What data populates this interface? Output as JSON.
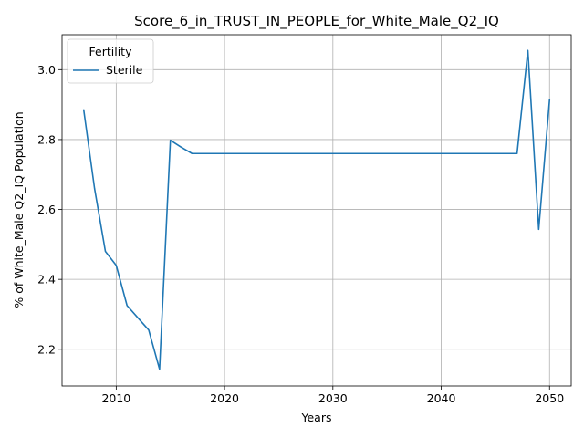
{
  "chart_data": {
    "type": "line",
    "title": "Score_6_in_TRUST_IN_PEOPLE_for_White_Male_Q2_IQ",
    "xlabel": "Years",
    "ylabel": "% of White_Male Q2_IQ Population",
    "xlim": [
      2005,
      2052
    ],
    "ylim": [
      2.095,
      3.1
    ],
    "xticks": [
      2010,
      2020,
      2030,
      2040,
      2050
    ],
    "yticks": [
      2.2,
      2.4,
      2.6,
      2.8,
      3.0
    ],
    "xtick_labels": [
      "2010",
      "2020",
      "2030",
      "2040",
      "2050"
    ],
    "ytick_labels": [
      "2.2",
      "2.4",
      "2.6",
      "2.8",
      "3.0"
    ],
    "grid": true,
    "legend": {
      "title": "Fertility",
      "placement": "top-left"
    },
    "series": [
      {
        "name": "Sterile",
        "color": "#1f77b4",
        "x": [
          2007,
          2008,
          2009,
          2010,
          2011,
          2012,
          2013,
          2014,
          2015,
          2016,
          2017,
          2018,
          2019,
          2020,
          2025,
          2030,
          2035,
          2040,
          2045,
          2046,
          2047,
          2048,
          2049,
          2050
        ],
        "y": [
          2.885,
          2.66,
          2.48,
          2.44,
          2.325,
          2.29,
          2.255,
          2.143,
          2.798,
          2.778,
          2.76,
          2.76,
          2.76,
          2.76,
          2.76,
          2.76,
          2.76,
          2.76,
          2.76,
          2.76,
          2.76,
          3.055,
          2.543,
          2.914
        ]
      }
    ]
  }
}
